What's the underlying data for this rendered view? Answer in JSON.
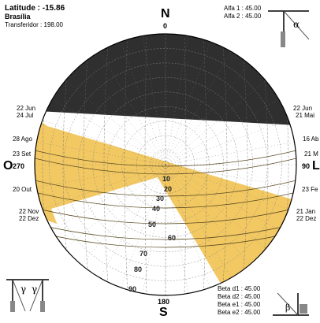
{
  "info": {
    "latitude": "Latitude : -15.86",
    "city": "Brasília",
    "protractor": "Transferidor : 198.00"
  },
  "compass": {
    "north": "N",
    "north_deg": "0",
    "south": "S",
    "south_deg": "180",
    "west": "O",
    "west_deg": "270",
    "east": "L",
    "east_deg": "90"
  },
  "dates_left": [
    "22 Jun",
    "24 Jul",
    "28 Ago",
    "23 Set",
    "20 Out",
    "22 Nov",
    "22 Dez"
  ],
  "dates_right": [
    "22 Jun",
    "21 Mai",
    "16 Ab",
    "21 M",
    "23 Fe",
    "21 Jan",
    "22 Dez"
  ],
  "altitude_labels": [
    "10",
    "20",
    "30",
    "40",
    "50",
    "60",
    "70",
    "80",
    "90"
  ],
  "alpha_panel": {
    "alfa1": "Alfa 1 : 45.00",
    "alfa2": "Alfa 2 : 45.00",
    "symbol": "α"
  },
  "beta_panel": {
    "d1": "Beta d1 : 45.00",
    "d2": "Beta d2 : 45.00",
    "e1": "Beta e1 : 45.00",
    "e2": "Beta e2 : 45.00",
    "symbol": "β"
  },
  "gamma_panel": {
    "symbol": "γ"
  },
  "colors": {
    "sky": "#2f2f2f",
    "mask": "#f2c862",
    "mask_stroke": "#c9a030",
    "white": "#ffffff"
  }
}
